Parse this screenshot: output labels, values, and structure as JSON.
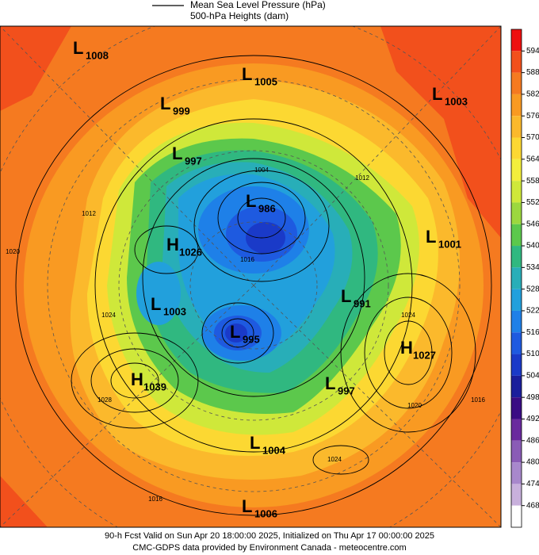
{
  "legend": {
    "line_label": "Mean Sea Level Pressure (hPa)",
    "fill_label": "500-hPa Heights (dam)"
  },
  "colorbar": {
    "ticks": [
      594,
      588,
      582,
      576,
      570,
      564,
      558,
      552,
      546,
      540,
      534,
      528,
      522,
      516,
      510,
      504,
      498,
      492,
      486,
      480,
      474,
      468
    ],
    "colors": [
      "#ee1010",
      "#f2501c",
      "#f57a20",
      "#f99a22",
      "#fbb92c",
      "#fcd832",
      "#f3ee3c",
      "#cfe83a",
      "#9cd83e",
      "#5cc84c",
      "#30b880",
      "#28aeb8",
      "#22a0dc",
      "#1e80e8",
      "#1e5ae0",
      "#1a3ac8",
      "#1a1e9c",
      "#3a0c84",
      "#6a2a9e",
      "#8a5cb6",
      "#a888cc",
      "#c8b0dc",
      "#ffffff"
    ]
  },
  "centers": [
    {
      "type": "L",
      "value": 1008
    },
    {
      "type": "L",
      "value": 1005
    },
    {
      "type": "L",
      "value": 999
    },
    {
      "type": "L",
      "value": 1003
    },
    {
      "type": "L",
      "value": 997
    },
    {
      "type": "L",
      "value": 986
    },
    {
      "type": "L",
      "value": 1001
    },
    {
      "type": "H",
      "value": 1026
    },
    {
      "type": "L",
      "value": 1003
    },
    {
      "type": "L",
      "value": 991
    },
    {
      "type": "L",
      "value": 995
    },
    {
      "type": "H",
      "value": 1027
    },
    {
      "type": "H",
      "value": 1039
    },
    {
      "type": "L",
      "value": 997
    },
    {
      "type": "L",
      "value": 1004
    },
    {
      "type": "L",
      "value": 1006
    }
  ],
  "contour_labels": [
    1012,
    1024,
    1020,
    1028,
    1016,
    1024,
    1016,
    1024,
    1020,
    1012,
    1004,
    1016
  ],
  "footer": [
    "90-h Fcst Valid on Sun Apr 20 18:00:00 2025, Initialized on Thu Apr 17 00:00:00 2025",
    "CMC-GDPS data provided by Environment Canada - meteocentre.com"
  ]
}
